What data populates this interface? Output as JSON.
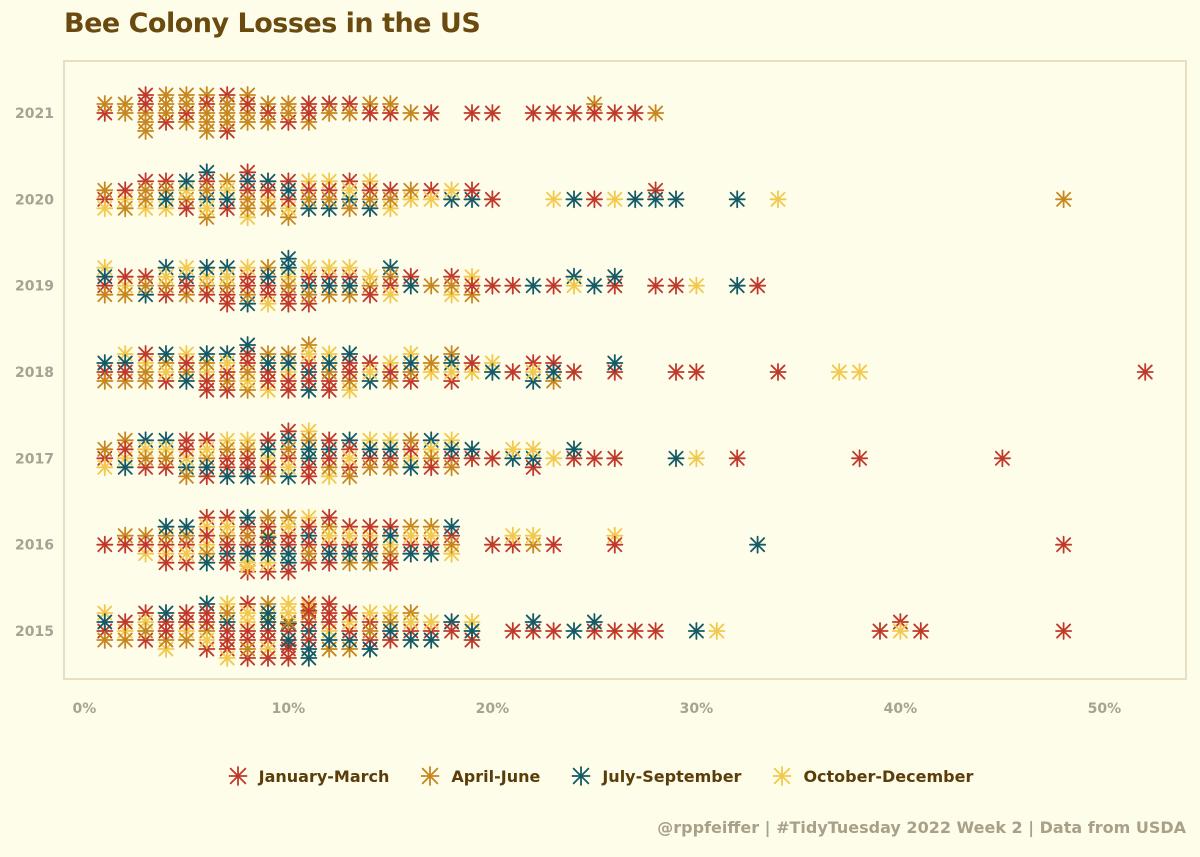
{
  "colors": {
    "background": "#fefdea",
    "title": "#6b4a10",
    "panel_border": "#e8dfc2",
    "tick_text": "#a7a292",
    "legend_text": "#5b3d0a",
    "caption": "#a9a089"
  },
  "chart_data": {
    "type": "scatter",
    "title": "Bee Colony Losses in the US",
    "caption": "@rppfeiffer | #TidyTuesday 2022 Week 2 | Data from USDA",
    "xlabel": "",
    "ylabel": "",
    "xlim": [
      -1,
      54
    ],
    "x_ticks": [
      "0%",
      "10%",
      "20%",
      "30%",
      "40%",
      "50%"
    ],
    "x_tick_values": [
      0,
      10,
      20,
      30,
      40,
      50
    ],
    "y_categories": [
      "2015",
      "2016",
      "2017",
      "2018",
      "2019",
      "2020",
      "2021"
    ],
    "grid": false,
    "legend_position": "bottom",
    "marker": "asterisk",
    "series": [
      {
        "name": "January-March",
        "color": "#c0392b",
        "points": {
          "2015": [
            1,
            2,
            3,
            3,
            4,
            4,
            5,
            5,
            6,
            6,
            6,
            7,
            7,
            7,
            8,
            8,
            8,
            8,
            9,
            9,
            9,
            10,
            10,
            10,
            10,
            11,
            11,
            11,
            11,
            12,
            12,
            12,
            13,
            13,
            14,
            14,
            15,
            16,
            17,
            18,
            19,
            21,
            22,
            23,
            25,
            26,
            27,
            28,
            39,
            40,
            41,
            48
          ],
          "2016": [
            1,
            2,
            3,
            4,
            4,
            5,
            5,
            6,
            6,
            7,
            7,
            7,
            8,
            8,
            8,
            9,
            9,
            9,
            10,
            10,
            10,
            11,
            11,
            11,
            12,
            12,
            12,
            13,
            13,
            14,
            14,
            15,
            15,
            16,
            17,
            18,
            20,
            21,
            23,
            26,
            48
          ],
          "2017": [
            1,
            2,
            3,
            4,
            5,
            5,
            6,
            6,
            7,
            7,
            8,
            8,
            9,
            9,
            10,
            10,
            11,
            11,
            12,
            12,
            13,
            13,
            14,
            15,
            16,
            17,
            18,
            19,
            20,
            22,
            24,
            25,
            26,
            32,
            38,
            45
          ],
          "2018": [
            1,
            2,
            3,
            4,
            5,
            6,
            6,
            7,
            7,
            8,
            8,
            9,
            9,
            10,
            10,
            11,
            11,
            12,
            12,
            13,
            13,
            14,
            15,
            16,
            18,
            19,
            21,
            22,
            23,
            24,
            26,
            29,
            30,
            34,
            52
          ],
          "2019": [
            1,
            2,
            3,
            4,
            5,
            6,
            7,
            7,
            8,
            8,
            9,
            9,
            10,
            10,
            11,
            11,
            12,
            13,
            14,
            15,
            16,
            18,
            19,
            20,
            21,
            23,
            26,
            28,
            29,
            33
          ],
          "2020": [
            1,
            2,
            3,
            4,
            5,
            6,
            7,
            8,
            8,
            9,
            10,
            10,
            11,
            12,
            13,
            14,
            15,
            17,
            19,
            20,
            25,
            28
          ],
          "2021": [
            1,
            3,
            3,
            4,
            5,
            6,
            7,
            7,
            8,
            9,
            10,
            11,
            11,
            12,
            13,
            14,
            15,
            17,
            19,
            20,
            22,
            23,
            24,
            25,
            26,
            27
          ]
        }
      },
      {
        "name": "April-June",
        "color": "#c8861f",
        "points": {
          "2015": [
            1,
            2,
            3,
            4,
            5,
            6,
            7,
            8,
            9,
            10,
            11,
            12,
            13,
            14,
            15,
            16
          ],
          "2016": [
            2,
            3,
            4,
            5,
            6,
            7,
            8,
            9,
            10,
            11,
            12,
            13,
            14,
            15,
            16,
            17,
            18,
            22
          ],
          "2017": [
            1,
            2,
            3,
            4,
            5,
            6,
            7,
            8,
            9,
            10,
            11,
            12,
            13,
            14,
            15,
            16,
            17,
            18
          ],
          "2018": [
            1,
            2,
            3,
            3,
            4,
            5,
            6,
            7,
            8,
            8,
            9,
            10,
            11,
            12,
            13,
            15,
            16,
            17,
            18,
            23
          ],
          "2019": [
            1,
            2,
            3,
            4,
            5,
            6,
            7,
            8,
            9,
            10,
            11,
            12,
            13,
            14,
            15,
            17,
            18,
            19
          ],
          "2020": [
            1,
            2,
            3,
            3,
            4,
            5,
            6,
            6,
            7,
            8,
            8,
            9,
            10,
            11,
            12,
            13,
            14,
            15,
            16,
            48
          ],
          "2021": [
            1,
            2,
            2,
            3,
            3,
            3,
            4,
            4,
            4,
            5,
            5,
            5,
            6,
            6,
            6,
            6,
            7,
            7,
            7,
            8,
            8,
            8,
            9,
            9,
            10,
            10,
            11,
            12,
            13,
            14,
            15,
            16,
            25,
            28
          ]
        }
      },
      {
        "name": "July-September",
        "color": "#145a67",
        "points": {
          "2015": [
            1,
            4,
            6,
            7,
            9,
            9,
            10,
            10,
            11,
            11,
            11,
            12,
            13,
            14,
            15,
            16,
            17,
            18,
            19,
            22,
            24,
            25,
            30
          ],
          "2016": [
            4,
            5,
            6,
            7,
            8,
            8,
            9,
            9,
            10,
            10,
            11,
            12,
            13,
            14,
            15,
            16,
            17,
            18,
            33
          ],
          "2017": [
            2,
            3,
            4,
            5,
            6,
            7,
            8,
            9,
            10,
            10,
            11,
            11,
            12,
            13,
            14,
            15,
            16,
            17,
            18,
            19,
            21,
            22,
            24,
            29
          ],
          "2018": [
            1,
            2,
            4,
            5,
            6,
            7,
            8,
            9,
            10,
            11,
            11,
            12,
            13,
            14,
            16,
            18,
            20,
            22,
            23,
            26
          ],
          "2019": [
            1,
            3,
            4,
            5,
            6,
            7,
            8,
            9,
            10,
            10,
            11,
            12,
            13,
            15,
            16,
            22,
            24,
            25,
            26,
            32
          ],
          "2020": [
            4,
            5,
            6,
            6,
            7,
            8,
            9,
            10,
            11,
            12,
            13,
            14,
            18,
            19,
            24,
            27,
            28,
            29,
            32
          ]
        }
      },
      {
        "name": "October-December",
        "color": "#f2c94c",
        "points": {
          "2015": [
            1,
            2,
            3,
            4,
            5,
            6,
            7,
            7,
            8,
            8,
            9,
            9,
            10,
            10,
            11,
            12,
            13,
            14,
            15,
            16,
            17,
            19,
            31,
            40
          ],
          "2016": [
            3,
            4,
            5,
            6,
            6,
            7,
            8,
            8,
            9,
            9,
            10,
            11,
            12,
            13,
            14,
            15,
            16,
            17,
            18,
            21,
            22,
            26
          ],
          "2017": [
            1,
            2,
            3,
            4,
            5,
            6,
            7,
            8,
            9,
            10,
            11,
            12,
            13,
            14,
            15,
            16,
            17,
            18,
            21,
            22,
            23,
            30
          ],
          "2018": [
            2,
            3,
            4,
            5,
            6,
            7,
            8,
            9,
            10,
            11,
            12,
            13,
            14,
            15,
            16,
            17,
            18,
            19,
            20,
            22,
            37,
            38
          ],
          "2019": [
            1,
            2,
            4,
            5,
            6,
            7,
            8,
            9,
            10,
            11,
            12,
            13,
            14,
            15,
            18,
            19,
            24,
            30
          ],
          "2020": [
            1,
            2,
            3,
            4,
            5,
            6,
            7,
            8,
            9,
            10,
            11,
            12,
            13,
            14,
            15,
            16,
            17,
            18,
            23,
            26,
            34
          ]
        }
      }
    ]
  }
}
